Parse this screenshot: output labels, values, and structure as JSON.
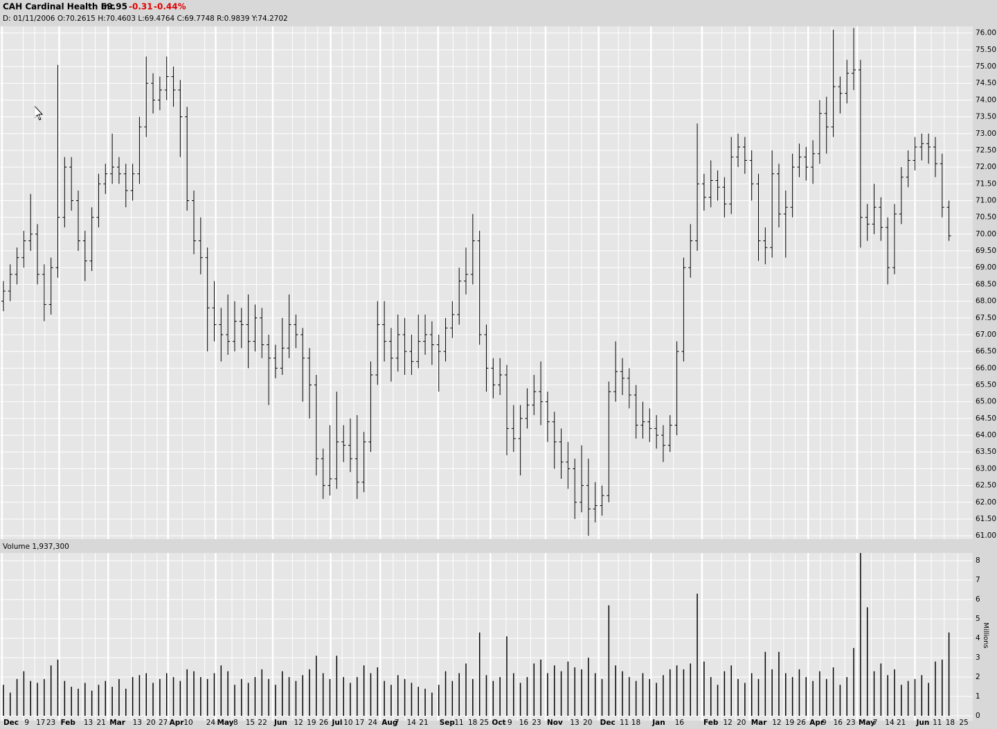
{
  "chart_data": [
    {
      "type": "ohlc",
      "title": "CAH Cardinal Health Inc",
      "last": "69.95",
      "change": "-0.31",
      "change_pct": "-0.44%",
      "info": "D: 01/11/2006 O:70.2615 H:70.4603 L:69.4764 C:69.7748 R:0.9839 Y:74.2702",
      "color": "#000000",
      "grid": true,
      "open": [
        68.0,
        68.3,
        68.8,
        69.3,
        69.8,
        70.0,
        68.8,
        67.9,
        69.0,
        70.5,
        72.0,
        71.0,
        69.8,
        69.2,
        70.5,
        71.5,
        71.8,
        72.0,
        71.8,
        71.3,
        71.8,
        73.2,
        74.5,
        74.0,
        74.3,
        74.7,
        74.3,
        73.5,
        71.0,
        69.8,
        69.3,
        67.8,
        67.3,
        67.0,
        66.8,
        67.4,
        67.3,
        66.8,
        67.5,
        66.7,
        66.3,
        66.0,
        66.6,
        67.3,
        67.0,
        66.3,
        65.5,
        63.3,
        62.5,
        62.7,
        63.8,
        63.7,
        63.3,
        62.6,
        63.8,
        65.8,
        67.3,
        66.8,
        66.3,
        67.0,
        66.5,
        66.2,
        66.8,
        67.0,
        66.7,
        66.5,
        67.2,
        67.6,
        68.6,
        68.8,
        69.8,
        67.0,
        66.0,
        65.5,
        65.8,
        64.2,
        63.9,
        64.5,
        64.9,
        65.3,
        65.0,
        64.4,
        63.8,
        63.2,
        63.0,
        62.0,
        62.5,
        61.8,
        61.9,
        62.2,
        65.3,
        65.9,
        65.7,
        65.2,
        64.3,
        64.4,
        64.2,
        64.0,
        63.7,
        64.3,
        66.5,
        69.0,
        69.8,
        71.5,
        71.1,
        71.6,
        71.4,
        70.9,
        72.3,
        72.6,
        72.2,
        71.5,
        69.8,
        69.6,
        71.8,
        70.6,
        70.8,
        72.0,
        72.3,
        72.0,
        72.4,
        73.6,
        73.2,
        74.4,
        74.2,
        74.8,
        74.9,
        70.5,
        70.3,
        70.8,
        70.2,
        69.0,
        70.6,
        71.7,
        72.2,
        72.6,
        72.7,
        72.6,
        72.1,
        70.8
      ],
      "high": [
        68.6,
        69.1,
        69.6,
        70.1,
        71.2,
        70.3,
        69.1,
        69.3,
        75.05,
        72.3,
        72.3,
        71.3,
        70.1,
        70.8,
        71.8,
        72.1,
        73.0,
        72.3,
        72.1,
        72.1,
        73.5,
        75.3,
        74.8,
        74.7,
        75.3,
        75.0,
        74.6,
        73.8,
        71.3,
        70.5,
        69.6,
        68.6,
        67.8,
        68.2,
        68.0,
        67.8,
        68.2,
        67.9,
        67.8,
        67.0,
        66.7,
        67.5,
        68.2,
        67.6,
        67.2,
        66.6,
        65.8,
        63.6,
        64.3,
        65.3,
        64.3,
        64.5,
        64.6,
        64.1,
        66.2,
        68.0,
        68.0,
        67.2,
        67.6,
        67.5,
        67.0,
        67.6,
        67.6,
        67.4,
        67.0,
        67.5,
        68.0,
        69.0,
        69.6,
        70.6,
        70.1,
        67.3,
        66.3,
        66.3,
        66.1,
        64.9,
        64.9,
        65.4,
        65.8,
        66.2,
        65.3,
        64.7,
        64.2,
        63.8,
        63.3,
        63.7,
        63.3,
        62.6,
        62.5,
        65.6,
        66.8,
        66.3,
        66.0,
        65.5,
        65.0,
        64.8,
        64.6,
        64.3,
        64.6,
        66.8,
        69.3,
        70.3,
        73.3,
        71.8,
        72.2,
        71.9,
        71.7,
        72.9,
        73.0,
        72.9,
        72.5,
        71.8,
        70.2,
        72.5,
        72.1,
        71.3,
        72.4,
        72.7,
        72.6,
        72.8,
        74.0,
        74.1,
        76.1,
        74.7,
        75.2,
        76.15,
        75.2,
        70.9,
        71.5,
        71.1,
        70.5,
        70.9,
        72.0,
        72.5,
        72.9,
        73.0,
        73.0,
        72.9,
        72.4,
        71.0
      ],
      "low": [
        67.7,
        68.0,
        68.5,
        69.0,
        69.5,
        68.5,
        67.4,
        67.6,
        68.7,
        70.2,
        70.7,
        69.5,
        68.6,
        68.9,
        70.2,
        71.2,
        71.5,
        71.5,
        70.8,
        71.0,
        71.5,
        72.9,
        73.6,
        73.7,
        74.0,
        73.8,
        72.3,
        70.7,
        69.4,
        68.8,
        66.5,
        66.8,
        66.2,
        66.4,
        66.5,
        66.6,
        66.0,
        66.5,
        66.3,
        64.9,
        65.7,
        65.8,
        66.3,
        66.6,
        65.0,
        64.5,
        62.8,
        62.1,
        62.2,
        62.4,
        63.2,
        62.9,
        62.1,
        62.3,
        63.5,
        65.5,
        66.2,
        65.6,
        65.9,
        65.8,
        65.8,
        66.0,
        66.4,
        66.1,
        65.3,
        66.2,
        66.9,
        67.3,
        68.2,
        68.5,
        66.7,
        65.3,
        65.1,
        65.2,
        63.4,
        63.5,
        62.8,
        64.2,
        64.6,
        64.3,
        63.8,
        63.0,
        62.7,
        62.4,
        61.5,
        61.7,
        61.0,
        61.4,
        61.6,
        62.0,
        65.0,
        65.2,
        64.8,
        63.9,
        63.9,
        63.8,
        63.6,
        63.2,
        63.5,
        64.0,
        66.2,
        68.7,
        69.5,
        70.7,
        70.8,
        71.0,
        70.5,
        70.6,
        72.0,
        71.8,
        71.0,
        69.2,
        69.1,
        69.3,
        70.2,
        69.3,
        70.5,
        71.7,
        71.6,
        71.5,
        72.1,
        72.4,
        72.9,
        73.6,
        73.9,
        74.3,
        69.6,
        69.8,
        70.0,
        69.8,
        68.5,
        68.8,
        70.3,
        71.4,
        71.9,
        72.2,
        72.1,
        71.7,
        70.5,
        69.8
      ],
      "close": [
        68.3,
        68.8,
        69.3,
        69.8,
        70.0,
        68.8,
        67.9,
        69.0,
        70.5,
        72.0,
        71.0,
        69.8,
        69.2,
        70.5,
        71.5,
        71.8,
        72.0,
        71.8,
        71.3,
        71.8,
        73.2,
        74.5,
        74.0,
        74.3,
        74.7,
        74.3,
        73.5,
        71.0,
        69.8,
        69.3,
        67.8,
        67.3,
        67.0,
        66.8,
        67.4,
        67.3,
        66.8,
        67.5,
        66.7,
        66.3,
        66.0,
        66.6,
        67.3,
        67.0,
        66.3,
        65.5,
        63.3,
        62.5,
        62.7,
        63.8,
        63.7,
        63.3,
        62.6,
        63.8,
        65.8,
        67.3,
        66.8,
        66.3,
        67.0,
        66.5,
        66.2,
        66.8,
        67.0,
        66.7,
        66.5,
        67.2,
        67.6,
        68.6,
        68.8,
        69.8,
        67.0,
        66.0,
        65.5,
        65.8,
        64.2,
        63.9,
        64.5,
        64.9,
        65.3,
        65.0,
        64.4,
        63.8,
        63.2,
        63.0,
        62.0,
        62.5,
        61.8,
        61.9,
        62.2,
        65.3,
        65.9,
        65.7,
        65.2,
        64.3,
        64.4,
        64.2,
        64.0,
        63.7,
        64.3,
        66.5,
        69.0,
        69.8,
        71.5,
        71.1,
        71.6,
        71.4,
        70.9,
        72.3,
        72.6,
        72.2,
        71.5,
        69.8,
        69.6,
        71.8,
        70.6,
        70.8,
        72.0,
        72.3,
        72.0,
        72.4,
        73.6,
        73.2,
        74.4,
        74.2,
        74.8,
        74.9,
        70.5,
        70.3,
        70.8,
        70.2,
        69.0,
        70.6,
        71.7,
        72.2,
        72.6,
        72.7,
        72.6,
        72.1,
        70.8,
        69.95
      ],
      "xlim": [
        0,
        143
      ],
      "xticks": [
        {
          "value": 0.3,
          "label": "Dec"
        },
        {
          "value": 3.4,
          "label": "9"
        },
        {
          "value": 5.1,
          "label": "17"
        },
        {
          "value": 6.6,
          "label": "23"
        },
        {
          "value": 8.7,
          "label": "Feb"
        },
        {
          "value": 12.1,
          "label": "13"
        },
        {
          "value": 14.0,
          "label": "21"
        },
        {
          "value": 15.9,
          "label": "Mar"
        },
        {
          "value": 19.3,
          "label": "13"
        },
        {
          "value": 21.3,
          "label": "20"
        },
        {
          "value": 23.1,
          "label": "27"
        },
        {
          "value": 24.7,
          "label": "Apr"
        },
        {
          "value": 26.8,
          "label": "10"
        },
        {
          "value": 30.1,
          "label": "24"
        },
        {
          "value": 31.7,
          "label": "May"
        },
        {
          "value": 34.1,
          "label": "8"
        },
        {
          "value": 35.9,
          "label": "15"
        },
        {
          "value": 37.7,
          "label": "22"
        },
        {
          "value": 40.1,
          "label": "Jun"
        },
        {
          "value": 43.0,
          "label": "12"
        },
        {
          "value": 44.9,
          "label": "19"
        },
        {
          "value": 46.7,
          "label": "26"
        },
        {
          "value": 48.6,
          "label": "Jul"
        },
        {
          "value": 50.3,
          "label": "10"
        },
        {
          "value": 52.0,
          "label": "17"
        },
        {
          "value": 53.9,
          "label": "24"
        },
        {
          "value": 55.9,
          "label": "Aug"
        },
        {
          "value": 57.8,
          "label": "7"
        },
        {
          "value": 59.6,
          "label": "14"
        },
        {
          "value": 61.4,
          "label": "21"
        },
        {
          "value": 64.4,
          "label": "Sep"
        },
        {
          "value": 66.6,
          "label": "11"
        },
        {
          "value": 68.6,
          "label": "18"
        },
        {
          "value": 70.3,
          "label": "25"
        },
        {
          "value": 72.1,
          "label": "Oct"
        },
        {
          "value": 74.4,
          "label": "9"
        },
        {
          "value": 76.1,
          "label": "16"
        },
        {
          "value": 78.0,
          "label": "23"
        },
        {
          "value": 80.2,
          "label": "Nov"
        },
        {
          "value": 83.6,
          "label": "13"
        },
        {
          "value": 85.5,
          "label": "20"
        },
        {
          "value": 88.0,
          "label": "Dec"
        },
        {
          "value": 90.9,
          "label": "11"
        },
        {
          "value": 92.6,
          "label": "18"
        },
        {
          "value": 95.7,
          "label": "Jan"
        },
        {
          "value": 99.0,
          "label": "16"
        },
        {
          "value": 103.2,
          "label": "Feb"
        },
        {
          "value": 106.1,
          "label": "12"
        },
        {
          "value": 108.1,
          "label": "20"
        },
        {
          "value": 110.2,
          "label": "Mar"
        },
        {
          "value": 113.3,
          "label": "12"
        },
        {
          "value": 115.2,
          "label": "19"
        },
        {
          "value": 116.9,
          "label": "26"
        },
        {
          "value": 118.8,
          "label": "Apr"
        },
        {
          "value": 120.6,
          "label": "9"
        },
        {
          "value": 122.3,
          "label": "16"
        },
        {
          "value": 124.2,
          "label": "23"
        },
        {
          "value": 126.0,
          "label": "May"
        },
        {
          "value": 128.1,
          "label": "7"
        },
        {
          "value": 129.9,
          "label": "14"
        },
        {
          "value": 131.6,
          "label": "21"
        },
        {
          "value": 134.5,
          "label": "Jun"
        },
        {
          "value": 136.9,
          "label": "11"
        },
        {
          "value": 138.8,
          "label": "18"
        },
        {
          "value": 140.8,
          "label": "25"
        }
      ],
      "ylim": [
        60.9,
        76.2
      ],
      "yticks": [
        {
          "value": 61,
          "label": "61.00"
        },
        {
          "value": 61.5,
          "label": "61.50"
        },
        {
          "value": 62,
          "label": "62.00"
        },
        {
          "value": 62.5,
          "label": "62.50"
        },
        {
          "value": 63,
          "label": "63.00"
        },
        {
          "value": 63.5,
          "label": "63.50"
        },
        {
          "value": 64,
          "label": "64.00"
        },
        {
          "value": 64.5,
          "label": "64.50"
        },
        {
          "value": 65,
          "label": "65.00"
        },
        {
          "value": 65.5,
          "label": "65.50"
        },
        {
          "value": 66,
          "label": "66.00"
        },
        {
          "value": 66.5,
          "label": "66.50"
        },
        {
          "value": 67,
          "label": "67.00"
        },
        {
          "value": 67.5,
          "label": "67.50"
        },
        {
          "value": 68,
          "label": "68.00"
        },
        {
          "value": 68.5,
          "label": "68.50"
        },
        {
          "value": 69,
          "label": "69.00"
        },
        {
          "value": 69.5,
          "label": "69.50"
        },
        {
          "value": 70,
          "label": "70.00"
        },
        {
          "value": 70.5,
          "label": "70.50"
        },
        {
          "value": 71,
          "label": "71.00"
        },
        {
          "value": 71.5,
          "label": "71.50"
        },
        {
          "value": 72,
          "label": "72.00"
        },
        {
          "value": 72.5,
          "label": "72.50"
        },
        {
          "value": 73,
          "label": "73.00"
        },
        {
          "value": 73.5,
          "label": "73.50"
        },
        {
          "value": 74,
          "label": "74.00"
        },
        {
          "value": 74.5,
          "label": "74.50"
        },
        {
          "value": 75,
          "label": "75.00"
        },
        {
          "value": 75.5,
          "label": "75.50"
        },
        {
          "value": 76,
          "label": "76.00"
        }
      ]
    },
    {
      "type": "bar",
      "title": "Volume 1,937,300",
      "ylabel": "Millions",
      "color": "#000000",
      "grid": true,
      "values": [
        1.6,
        1.2,
        1.9,
        2.3,
        1.8,
        1.7,
        1.9,
        2.6,
        2.9,
        1.8,
        1.5,
        1.4,
        1.7,
        1.3,
        1.6,
        1.8,
        1.5,
        1.9,
        1.4,
        2.0,
        2.1,
        2.2,
        1.7,
        1.9,
        2.2,
        2.0,
        1.8,
        2.4,
        2.3,
        2.0,
        1.9,
        2.2,
        2.6,
        2.3,
        1.6,
        1.9,
        1.7,
        2.0,
        2.4,
        1.9,
        1.6,
        2.3,
        2.0,
        1.8,
        2.1,
        2.4,
        3.1,
        2.2,
        1.9,
        3.1,
        2.0,
        1.7,
        2.0,
        2.6,
        2.2,
        2.5,
        1.8,
        1.6,
        2.1,
        1.9,
        1.7,
        1.5,
        1.4,
        1.2,
        1.6,
        2.3,
        1.8,
        2.2,
        2.7,
        1.9,
        4.3,
        2.1,
        1.8,
        2.0,
        4.1,
        2.2,
        1.7,
        2.0,
        2.7,
        2.9,
        2.2,
        2.6,
        2.3,
        2.8,
        2.5,
        2.4,
        3.0,
        2.2,
        1.9,
        5.7,
        2.6,
        2.3,
        2.0,
        1.8,
        2.2,
        1.9,
        1.7,
        2.1,
        2.4,
        2.6,
        2.4,
        2.7,
        6.3,
        2.8,
        2.0,
        1.6,
        2.3,
        2.6,
        1.9,
        1.7,
        2.2,
        1.9,
        3.3,
        2.4,
        3.3,
        2.2,
        2.0,
        2.4,
        2.0,
        1.8,
        2.3,
        1.9,
        2.5,
        1.6,
        2.0,
        3.5,
        8.4,
        5.6,
        2.3,
        2.7,
        2.1,
        2.4,
        1.6,
        1.8,
        1.9,
        2.1,
        1.7,
        2.8,
        2.9,
        4.3
      ],
      "ylim": [
        -0.25,
        8.4
      ],
      "yticks": [
        0,
        1,
        2,
        3,
        4,
        5,
        6,
        7,
        8
      ]
    }
  ]
}
